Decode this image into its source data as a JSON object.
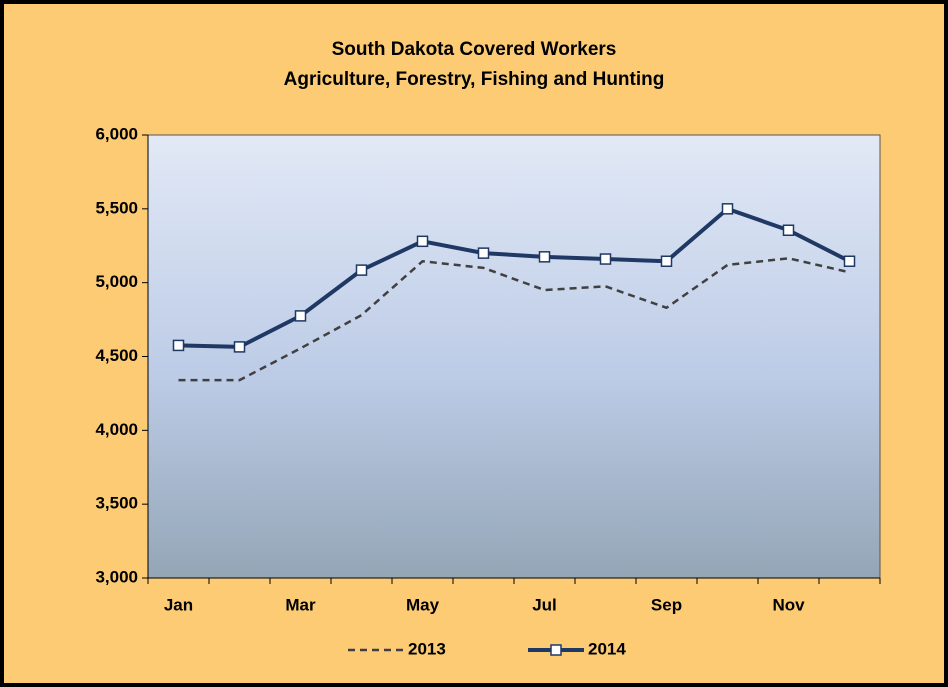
{
  "chart_data": {
    "type": "line",
    "title": "South Dakota Covered Workers",
    "subtitle": "Agriculture, Forestry, Fishing and Hunting",
    "categories": [
      "Jan",
      null,
      "Mar",
      null,
      "May",
      null,
      "Jul",
      null,
      "Sep",
      null,
      "Nov",
      null
    ],
    "series": [
      {
        "name": "2013",
        "color": "#404040",
        "dashed": true,
        "marker": false,
        "values": [
          4340,
          4340,
          4555,
          4780,
          5145,
          5100,
          4950,
          4975,
          4830,
          5120,
          5165,
          5070
        ]
      },
      {
        "name": "2014",
        "color": "#1f3864",
        "dashed": false,
        "marker": true,
        "values": [
          4575,
          4565,
          4775,
          5085,
          5280,
          5200,
          5175,
          5160,
          5145,
          5500,
          5355,
          5145
        ]
      }
    ],
    "ylim": [
      3000,
      6000
    ],
    "yticks": [
      {
        "value": 3000,
        "label": "3,000"
      },
      {
        "value": 3500,
        "label": "3,500"
      },
      {
        "value": 4000,
        "label": "4,000"
      },
      {
        "value": 4500,
        "label": "4,500"
      },
      {
        "value": 5000,
        "label": "5,000"
      },
      {
        "value": 5500,
        "label": "5,500"
      },
      {
        "value": 6000,
        "label": "6,000"
      }
    ],
    "grid": false,
    "legend": "bottom"
  }
}
